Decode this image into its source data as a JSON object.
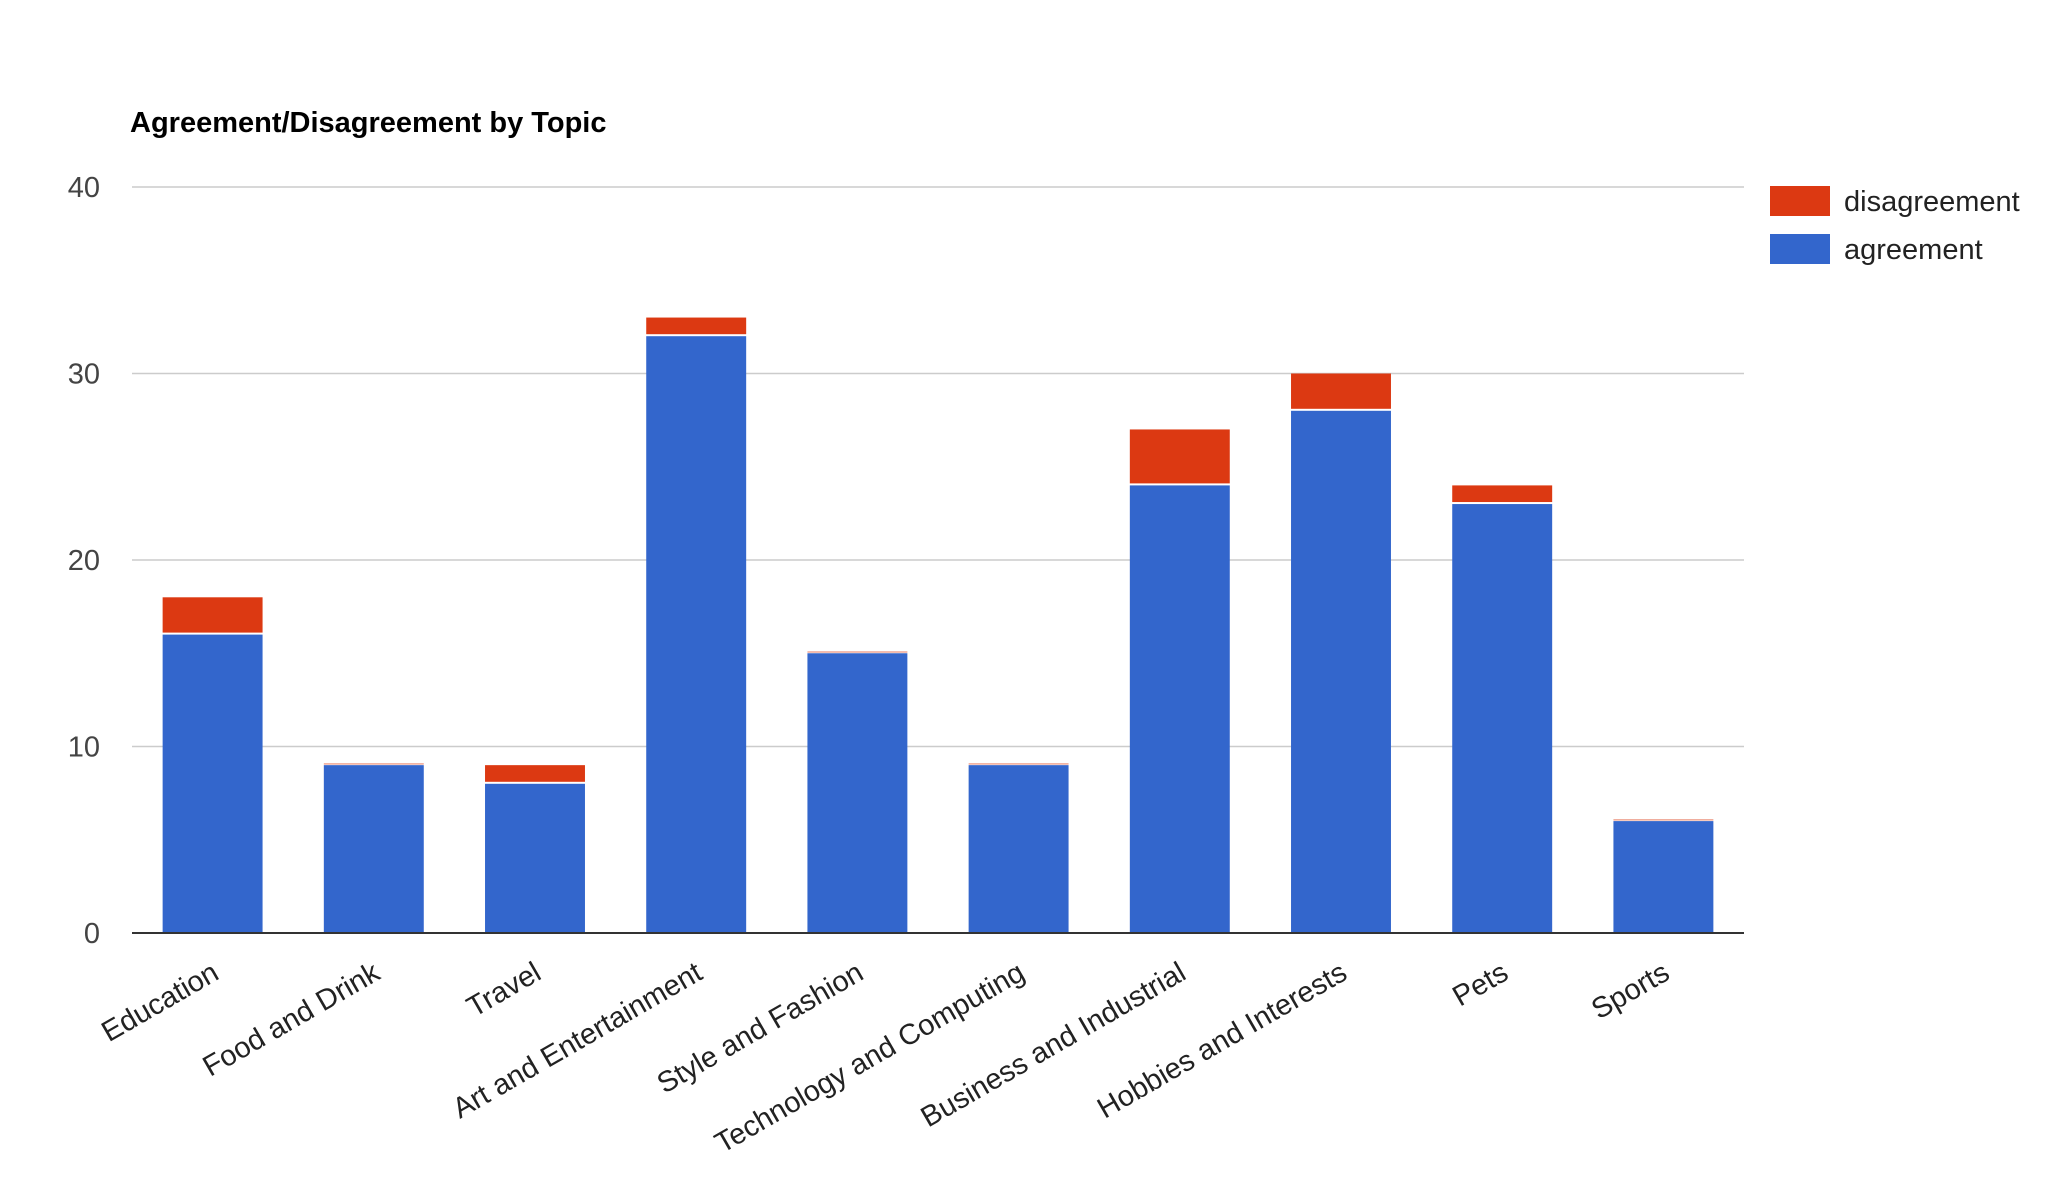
{
  "chart_data": {
    "type": "bar",
    "stacked": true,
    "title": "Agreement/Disagreement by Topic",
    "xlabel": "",
    "ylabel": "",
    "ylim": [
      0,
      40
    ],
    "yticks": [
      "0",
      "10",
      "20",
      "30",
      "40"
    ],
    "grid": true,
    "legend_position": "right",
    "categories": [
      "Education",
      "Food and Drink",
      "Travel",
      "Art and Entertainment",
      "Style and Fashion",
      "Technology and Computing",
      "Business and Industrial",
      "Hobbies and Interests",
      "Pets",
      "Sports"
    ],
    "series": [
      {
        "name": "agreement",
        "color": "#3366cc",
        "values": [
          16,
          9,
          8,
          32,
          15,
          9,
          24,
          28,
          23,
          6
        ]
      },
      {
        "name": "disagreement",
        "color": "#dc3912",
        "values": [
          2,
          0,
          1,
          1,
          0,
          0,
          3,
          2,
          1,
          0
        ]
      }
    ],
    "legend_order": [
      "disagreement",
      "agreement"
    ]
  }
}
